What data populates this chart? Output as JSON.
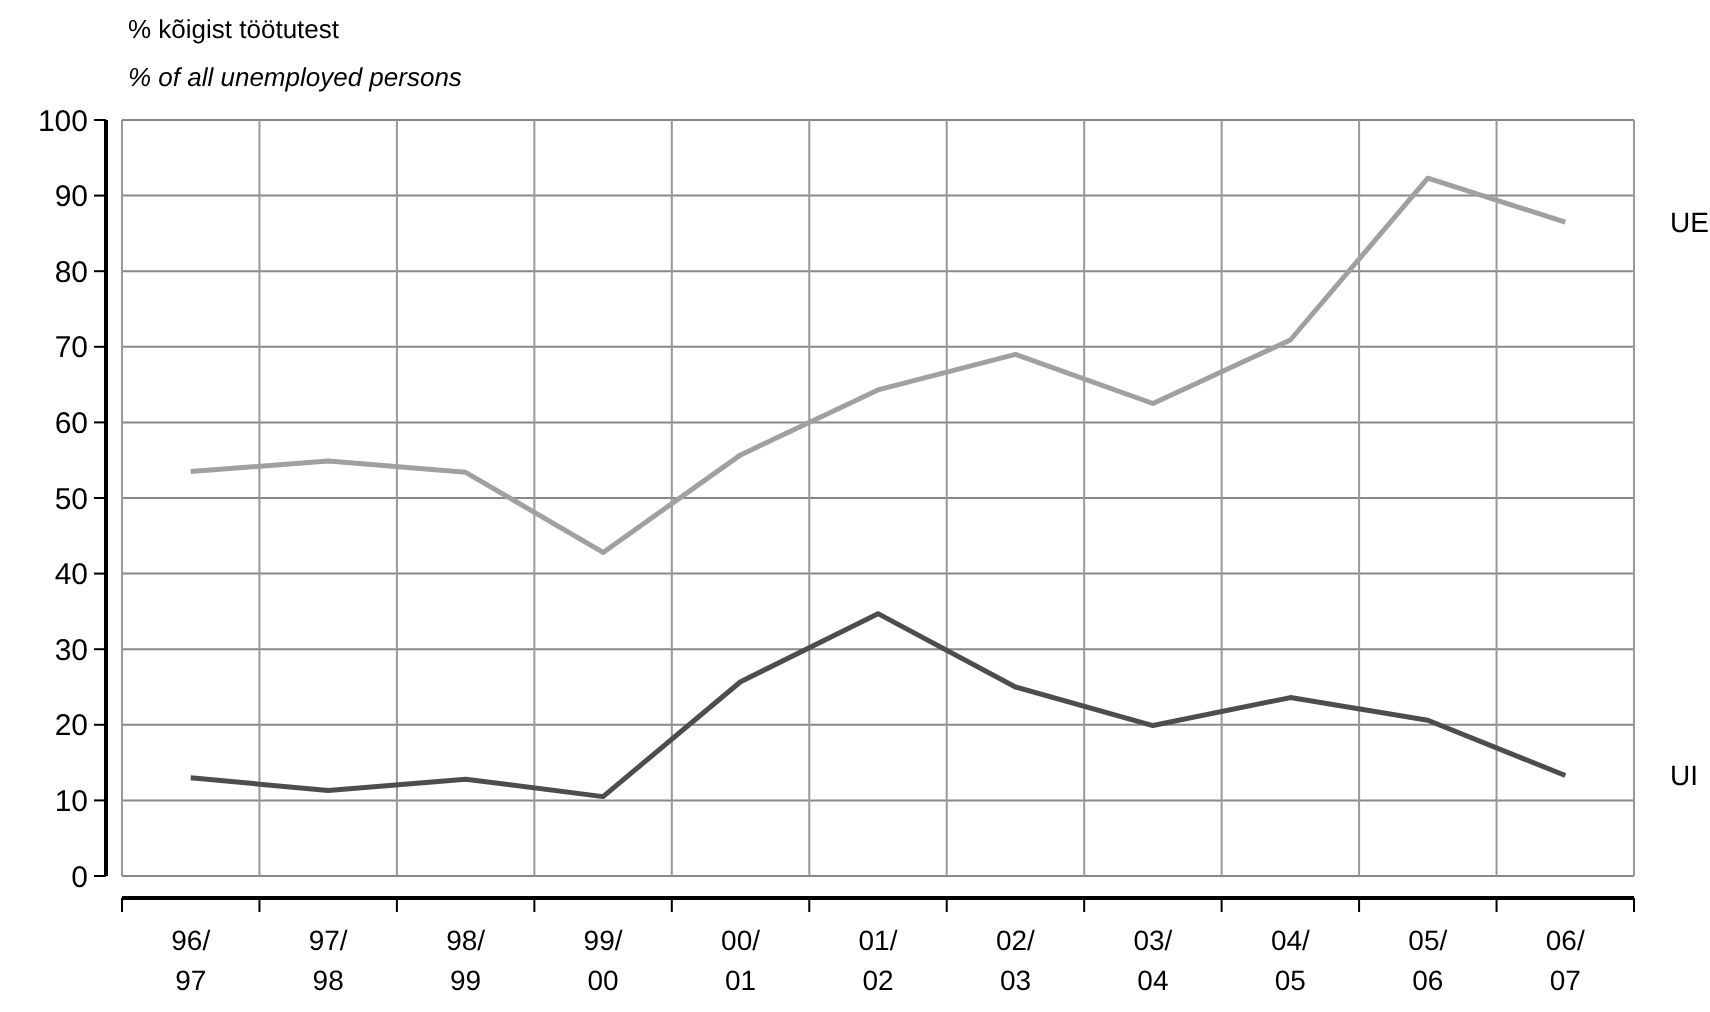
{
  "chart_data": {
    "type": "line",
    "title": "% kõigist töötutest",
    "subtitle": "% of all unemployed persons",
    "categories": [
      "96/\n97",
      "97/\n98",
      "98/\n99",
      "99/\n00",
      "00/\n01",
      "01/\n02",
      "02/\n03",
      "03/\n04",
      "04/\n05",
      "05/\n06",
      "06/\n07"
    ],
    "series": [
      {
        "name": "UE",
        "color": "#a0a0a0",
        "values": [
          53.5,
          54.9,
          53.4,
          42.8,
          55.7,
          64.3,
          69.0,
          62.5,
          70.9,
          92.3,
          86.5
        ]
      },
      {
        "name": "UI",
        "color": "#4d4d4d",
        "values": [
          13.0,
          11.3,
          12.8,
          10.5,
          25.7,
          34.7,
          25.0,
          19.9,
          23.6,
          20.6,
          13.3
        ]
      }
    ],
    "ylim": [
      0,
      100
    ],
    "yticks": [
      0,
      10,
      20,
      30,
      40,
      50,
      60,
      70,
      80,
      90,
      100
    ],
    "grid": true,
    "legend": false,
    "marker": "none",
    "line_style": "solid"
  }
}
